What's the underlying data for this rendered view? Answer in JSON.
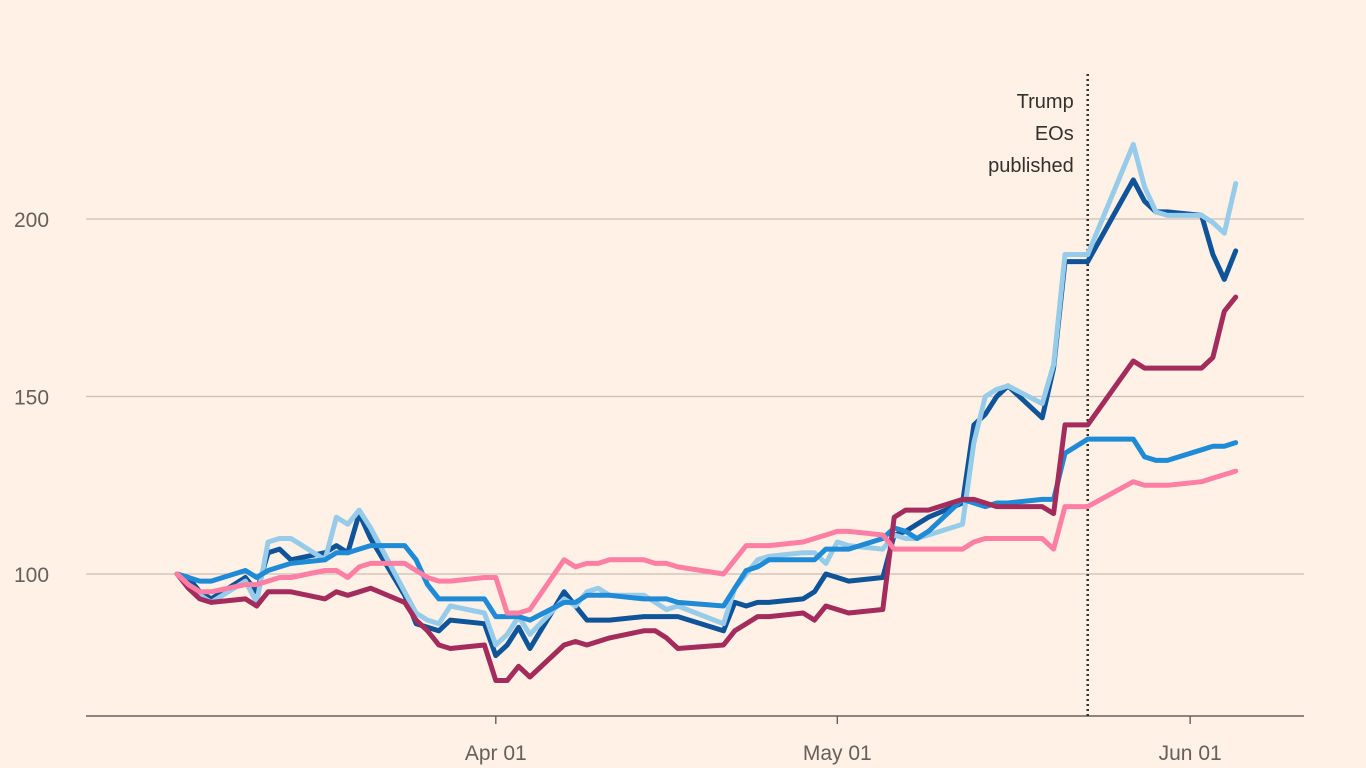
{
  "chart_data": {
    "type": "line",
    "title": "",
    "xlabel": "",
    "ylabel": "",
    "x": [
      "2025-03-04",
      "2025-03-05",
      "2025-03-06",
      "2025-03-07",
      "2025-03-10",
      "2025-03-11",
      "2025-03-12",
      "2025-03-13",
      "2025-03-14",
      "2025-03-17",
      "2025-03-18",
      "2025-03-19",
      "2025-03-20",
      "2025-03-21",
      "2025-03-24",
      "2025-03-25",
      "2025-03-26",
      "2025-03-27",
      "2025-03-28",
      "2025-03-31",
      "2025-04-01",
      "2025-04-02",
      "2025-04-03",
      "2025-04-04",
      "2025-04-07",
      "2025-04-08",
      "2025-04-09",
      "2025-04-10",
      "2025-04-11",
      "2025-04-14",
      "2025-04-15",
      "2025-04-16",
      "2025-04-17",
      "2025-04-21",
      "2025-04-22",
      "2025-04-23",
      "2025-04-24",
      "2025-04-25",
      "2025-04-28",
      "2025-04-29",
      "2025-04-30",
      "2025-05-01",
      "2025-05-02",
      "2025-05-05",
      "2025-05-06",
      "2025-05-07",
      "2025-05-08",
      "2025-05-09",
      "2025-05-12",
      "2025-05-13",
      "2025-05-14",
      "2025-05-15",
      "2025-05-16",
      "2025-05-19",
      "2025-05-20",
      "2025-05-21",
      "2025-05-22",
      "2025-05-23",
      "2025-05-27",
      "2025-05-28",
      "2025-05-29",
      "2025-05-30",
      "2025-06-02",
      "2025-06-03",
      "2025-06-04",
      "2025-06-05"
    ],
    "x_ticks": [
      {
        "date": "2025-04-01",
        "label": "Apr 01"
      },
      {
        "date": "2025-05-01",
        "label": "May 01"
      },
      {
        "date": "2025-06-01",
        "label": "Jun 01"
      }
    ],
    "x_range": [
      "2025-02-24",
      "2025-06-11"
    ],
    "ylim": [
      60,
      240
    ],
    "y_ticks": [
      100,
      150,
      200
    ],
    "grid": "horizontal",
    "legend": "none",
    "series": [
      {
        "color": "#0f5499",
        "values": [
          100,
          99,
          95,
          93,
          99,
          95,
          106,
          107,
          104,
          106,
          108,
          106,
          117,
          110,
          94,
          86,
          85,
          84,
          87,
          86,
          77,
          80,
          85,
          79,
          95,
          91,
          87,
          87,
          87,
          88,
          88,
          88,
          88,
          84,
          92,
          91,
          92,
          92,
          93,
          95,
          100,
          99,
          98,
          99,
          111,
          112,
          114,
          116,
          120,
          142,
          145,
          150,
          153,
          144,
          158,
          188,
          188,
          188,
          211,
          205,
          202,
          202,
          201,
          190,
          183,
          191
        ]
      },
      {
        "color": "#96cce9",
        "values": [
          100,
          97,
          94,
          92,
          98,
          92,
          109,
          110,
          110,
          104,
          116,
          114,
          118,
          113,
          95,
          89,
          87,
          86,
          91,
          89,
          80,
          83,
          88,
          83,
          93,
          91,
          95,
          96,
          94,
          94,
          92,
          90,
          91,
          86,
          96,
          100,
          104,
          105,
          106,
          106,
          103,
          109,
          108,
          107,
          111,
          110,
          110,
          111,
          114,
          137,
          150,
          152,
          153,
          148,
          159,
          190,
          190,
          190,
          221,
          209,
          202,
          201,
          201,
          199,
          196,
          210
        ]
      },
      {
        "color": "#1f8ad6",
        "values": [
          100,
          99,
          98,
          98,
          101,
          99,
          101,
          102,
          103,
          104,
          106,
          106,
          107,
          108,
          108,
          104,
          97,
          93,
          93,
          93,
          88,
          88,
          88,
          87,
          92,
          92,
          94,
          94,
          94,
          93,
          93,
          93,
          92,
          91,
          96,
          101,
          102,
          104,
          104,
          104,
          107,
          107,
          107,
          110,
          113,
          112,
          110,
          112,
          121,
          120,
          119,
          120,
          120,
          121,
          121,
          134,
          136,
          138,
          138,
          133,
          132,
          132,
          135,
          136,
          136,
          137
        ]
      },
      {
        "color": "#a42c5c",
        "values": [
          100,
          96,
          93,
          92,
          93,
          91,
          95,
          95,
          95,
          93,
          95,
          94,
          95,
          96,
          92,
          87,
          84,
          80,
          79,
          80,
          70,
          70,
          74,
          71,
          80,
          81,
          80,
          81,
          82,
          84,
          84,
          82,
          79,
          80,
          84,
          86,
          88,
          88,
          89,
          87,
          91,
          90,
          89,
          90,
          116,
          118,
          118,
          118,
          121,
          121,
          120,
          119,
          119,
          119,
          117,
          142,
          142,
          142,
          160,
          158,
          158,
          158,
          158,
          161,
          174,
          178
        ]
      },
      {
        "color": "#ff7fa4",
        "values": [
          100,
          97,
          95,
          95,
          97,
          97,
          98,
          99,
          99,
          101,
          101,
          99,
          102,
          103,
          103,
          101,
          99,
          98,
          98,
          99,
          99,
          89,
          89,
          90,
          104,
          102,
          103,
          103,
          104,
          104,
          103,
          103,
          102,
          100,
          104,
          108,
          108,
          108,
          109,
          110,
          111,
          112,
          112,
          111,
          107,
          107,
          107,
          107,
          107,
          109,
          110,
          110,
          110,
          110,
          107,
          119,
          119,
          119,
          126,
          125,
          125,
          125,
          126,
          127,
          128,
          129
        ]
      }
    ],
    "annotations": [
      {
        "date": "2025-05-23",
        "text_lines": [
          "Trump",
          "EOs",
          "published"
        ],
        "style": "dotted-vertical"
      }
    ]
  }
}
